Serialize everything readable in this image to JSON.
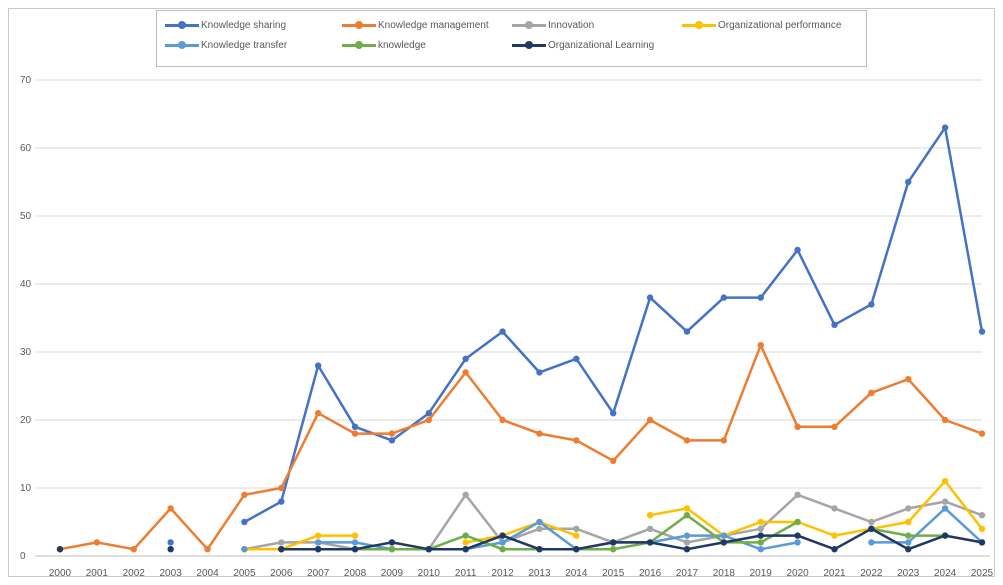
{
  "chart_data": {
    "type": "line",
    "x": [
      "2000",
      "2001",
      "2002",
      "2003",
      "2004",
      "2005",
      "2006",
      "2007",
      "2008",
      "2009",
      "2010",
      "2011",
      "2012",
      "2013",
      "2014",
      "2015",
      "2016",
      "2017",
      "2018",
      "2019",
      "2020",
      "2021",
      "2022",
      "2023",
      "2024",
      "2025"
    ],
    "ylim": [
      0,
      70
    ],
    "yticks": [
      0,
      10,
      20,
      30,
      40,
      50,
      60,
      70
    ],
    "grid": "horizontal",
    "legend_position": "top",
    "series": [
      {
        "name": "Knowledge sharing",
        "color": "#4472C4",
        "values": [
          null,
          null,
          null,
          2,
          null,
          5,
          8,
          28,
          19,
          17,
          21,
          29,
          33,
          27,
          29,
          21,
          38,
          33,
          38,
          38,
          45,
          34,
          37,
          55,
          63,
          33
        ]
      },
      {
        "name": "Knowledge management",
        "color": "#ED7D31",
        "values": [
          1,
          2,
          1,
          7,
          1,
          9,
          10,
          21,
          18,
          18,
          20,
          27,
          20,
          18,
          17,
          14,
          20,
          17,
          17,
          31,
          19,
          19,
          24,
          26,
          20,
          18
        ]
      },
      {
        "name": "Innovation",
        "color": "#A5A5A5",
        "values": [
          null,
          null,
          null,
          null,
          null,
          1,
          2,
          2,
          1,
          1,
          1,
          9,
          2,
          4,
          4,
          2,
          4,
          2,
          3,
          4,
          9,
          7,
          5,
          7,
          8,
          6
        ]
      },
      {
        "name": "Organizational performance",
        "color": "#FFC000",
        "values": [
          null,
          null,
          null,
          null,
          null,
          1,
          1,
          3,
          3,
          null,
          null,
          2,
          3,
          5,
          3,
          null,
          6,
          7,
          3,
          5,
          5,
          3,
          4,
          5,
          11,
          4
        ]
      },
      {
        "name": "Knowledge transfer",
        "color": "#5B9BD5",
        "values": [
          null,
          null,
          null,
          null,
          null,
          1,
          null,
          2,
          2,
          1,
          1,
          1,
          2,
          5,
          1,
          2,
          2,
          3,
          3,
          1,
          2,
          null,
          2,
          2,
          7,
          2
        ]
      },
      {
        "name": "knowledge",
        "color": "#70AD47",
        "values": [
          null,
          null,
          null,
          null,
          null,
          null,
          1,
          1,
          1,
          1,
          1,
          3,
          1,
          1,
          1,
          1,
          2,
          6,
          2,
          2,
          5,
          null,
          4,
          3,
          3,
          null
        ]
      },
      {
        "name": "Organizational Learning",
        "color": "#203864",
        "values": [
          1,
          null,
          null,
          1,
          null,
          null,
          1,
          1,
          1,
          2,
          1,
          1,
          3,
          1,
          1,
          2,
          2,
          1,
          2,
          3,
          3,
          1,
          4,
          1,
          3,
          2
        ]
      }
    ]
  }
}
